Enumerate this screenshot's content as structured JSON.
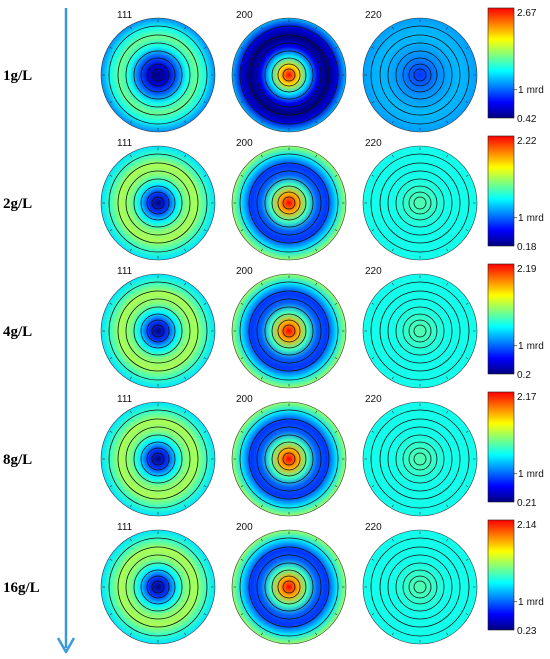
{
  "colorbar_unit": "mrd",
  "colormap": [
    "#00007f",
    "#0000ff",
    "#007fff",
    "#00ffff",
    "#7fff7f",
    "#ffff00",
    "#ff7f00",
    "#ff0000"
  ],
  "rows": [
    {
      "label": "1g/L",
      "poles": [
        "111",
        "200",
        "220"
      ],
      "colorbar": {
        "max": "2.67",
        "mid": "1",
        "min": "0.42"
      },
      "levels": {
        "111": [
          0.0,
          0.1,
          0.25,
          0.45,
          0.55,
          0.45,
          0.3
        ],
        "200": [
          1.0,
          0.75,
          0.4,
          0.12,
          0.0,
          0.1,
          0.35
        ],
        "220": [
          0.2,
          0.25,
          0.3,
          0.33,
          0.35,
          0.34,
          0.32
        ]
      }
    },
    {
      "label": "2g/L",
      "poles": [
        "111",
        "200",
        "220"
      ],
      "colorbar": {
        "max": "2.22",
        "mid": "1",
        "min": "0.18"
      },
      "levels": {
        "111": [
          0.0,
          0.2,
          0.42,
          0.58,
          0.62,
          0.5,
          0.4
        ],
        "200": [
          1.0,
          0.8,
          0.5,
          0.25,
          0.2,
          0.4,
          0.6
        ],
        "220": [
          0.52,
          0.5,
          0.47,
          0.45,
          0.45,
          0.45,
          0.45
        ]
      }
    },
    {
      "label": "4g/L",
      "poles": [
        "111",
        "200",
        "220"
      ],
      "colorbar": {
        "max": "2.19",
        "mid": "1",
        "min": "0.2"
      },
      "levels": {
        "111": [
          0.0,
          0.2,
          0.42,
          0.58,
          0.62,
          0.5,
          0.4
        ],
        "200": [
          1.0,
          0.8,
          0.5,
          0.25,
          0.2,
          0.4,
          0.6
        ],
        "220": [
          0.52,
          0.5,
          0.47,
          0.45,
          0.45,
          0.45,
          0.45
        ]
      }
    },
    {
      "label": "8g/L",
      "poles": [
        "111",
        "200",
        "220"
      ],
      "colorbar": {
        "max": "2.17",
        "mid": "1",
        "min": "0.21"
      },
      "levels": {
        "111": [
          0.0,
          0.2,
          0.42,
          0.58,
          0.62,
          0.5,
          0.4
        ],
        "200": [
          1.0,
          0.8,
          0.5,
          0.25,
          0.2,
          0.4,
          0.6
        ],
        "220": [
          0.52,
          0.5,
          0.47,
          0.45,
          0.45,
          0.45,
          0.45
        ]
      }
    },
    {
      "label": "16g/L",
      "poles": [
        "111",
        "200",
        "220"
      ],
      "colorbar": {
        "max": "2.14",
        "mid": "1",
        "min": "0.23"
      },
      "levels": {
        "111": [
          0.0,
          0.2,
          0.42,
          0.58,
          0.62,
          0.5,
          0.4
        ],
        "200": [
          1.0,
          0.8,
          0.5,
          0.25,
          0.2,
          0.4,
          0.6
        ],
        "220": [
          0.52,
          0.5,
          0.47,
          0.45,
          0.45,
          0.45,
          0.45
        ]
      }
    }
  ]
}
